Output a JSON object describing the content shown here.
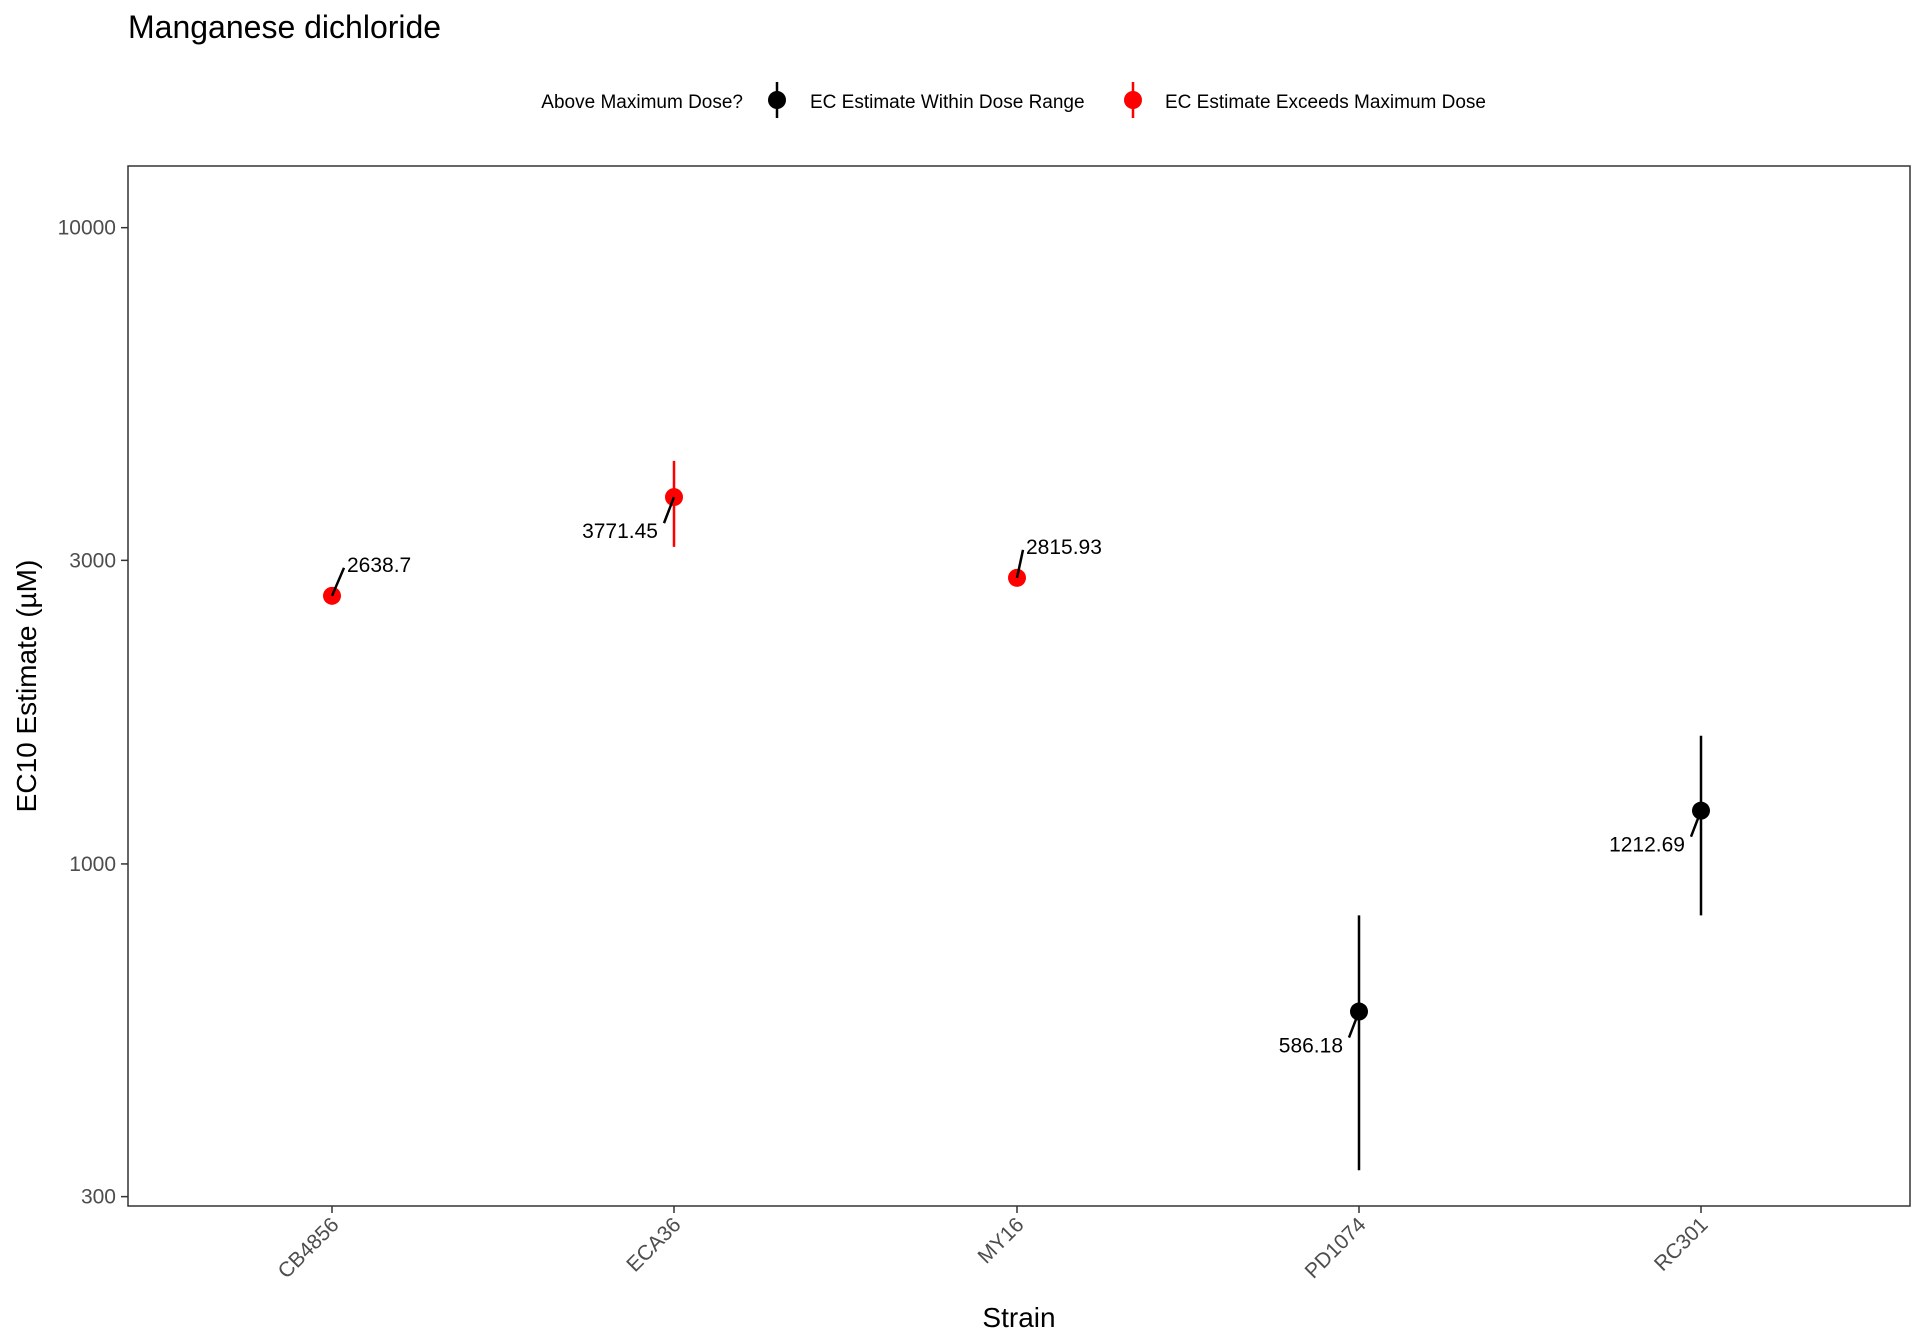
{
  "chart_data": {
    "type": "scatter",
    "title": "Manganese dichloride",
    "xlabel": "Strain",
    "ylabel": "EC10 Estimate (µM)",
    "y_scale": "log10",
    "ylim": [
      290,
      12500
    ],
    "y_ticks": [
      300,
      1000,
      3000,
      10000
    ],
    "y_tick_labels": [
      "300",
      "1000",
      "3000",
      "10000"
    ],
    "categories": [
      "CB4856",
      "ECA36",
      "MY16",
      "PD1074",
      "RC301"
    ],
    "grid": false,
    "legend": {
      "position": "top",
      "title": "Above Maximum Dose?",
      "entries": [
        {
          "label": "EC Estimate Within Dose Range",
          "color": "#000000"
        },
        {
          "label": "EC Estimate Exceeds Maximum Dose",
          "color": "#ff0000"
        }
      ]
    },
    "points": [
      {
        "strain": "CB4856",
        "value": 2638.7,
        "label": "2638.7",
        "group": 1,
        "lower": null,
        "upper": null
      },
      {
        "strain": "ECA36",
        "value": 3771.45,
        "label": "3771.45",
        "group": 1,
        "lower": 3150,
        "upper": 4300
      },
      {
        "strain": "MY16",
        "value": 2815.93,
        "label": "2815.93",
        "group": 1,
        "lower": null,
        "upper": null
      },
      {
        "strain": "PD1074",
        "value": 586.18,
        "label": "586.18",
        "group": 0,
        "lower": 330,
        "upper": 830
      },
      {
        "strain": "RC301",
        "value": 1212.69,
        "label": "1212.69",
        "group": 0,
        "lower": 830,
        "upper": 1590
      }
    ]
  }
}
